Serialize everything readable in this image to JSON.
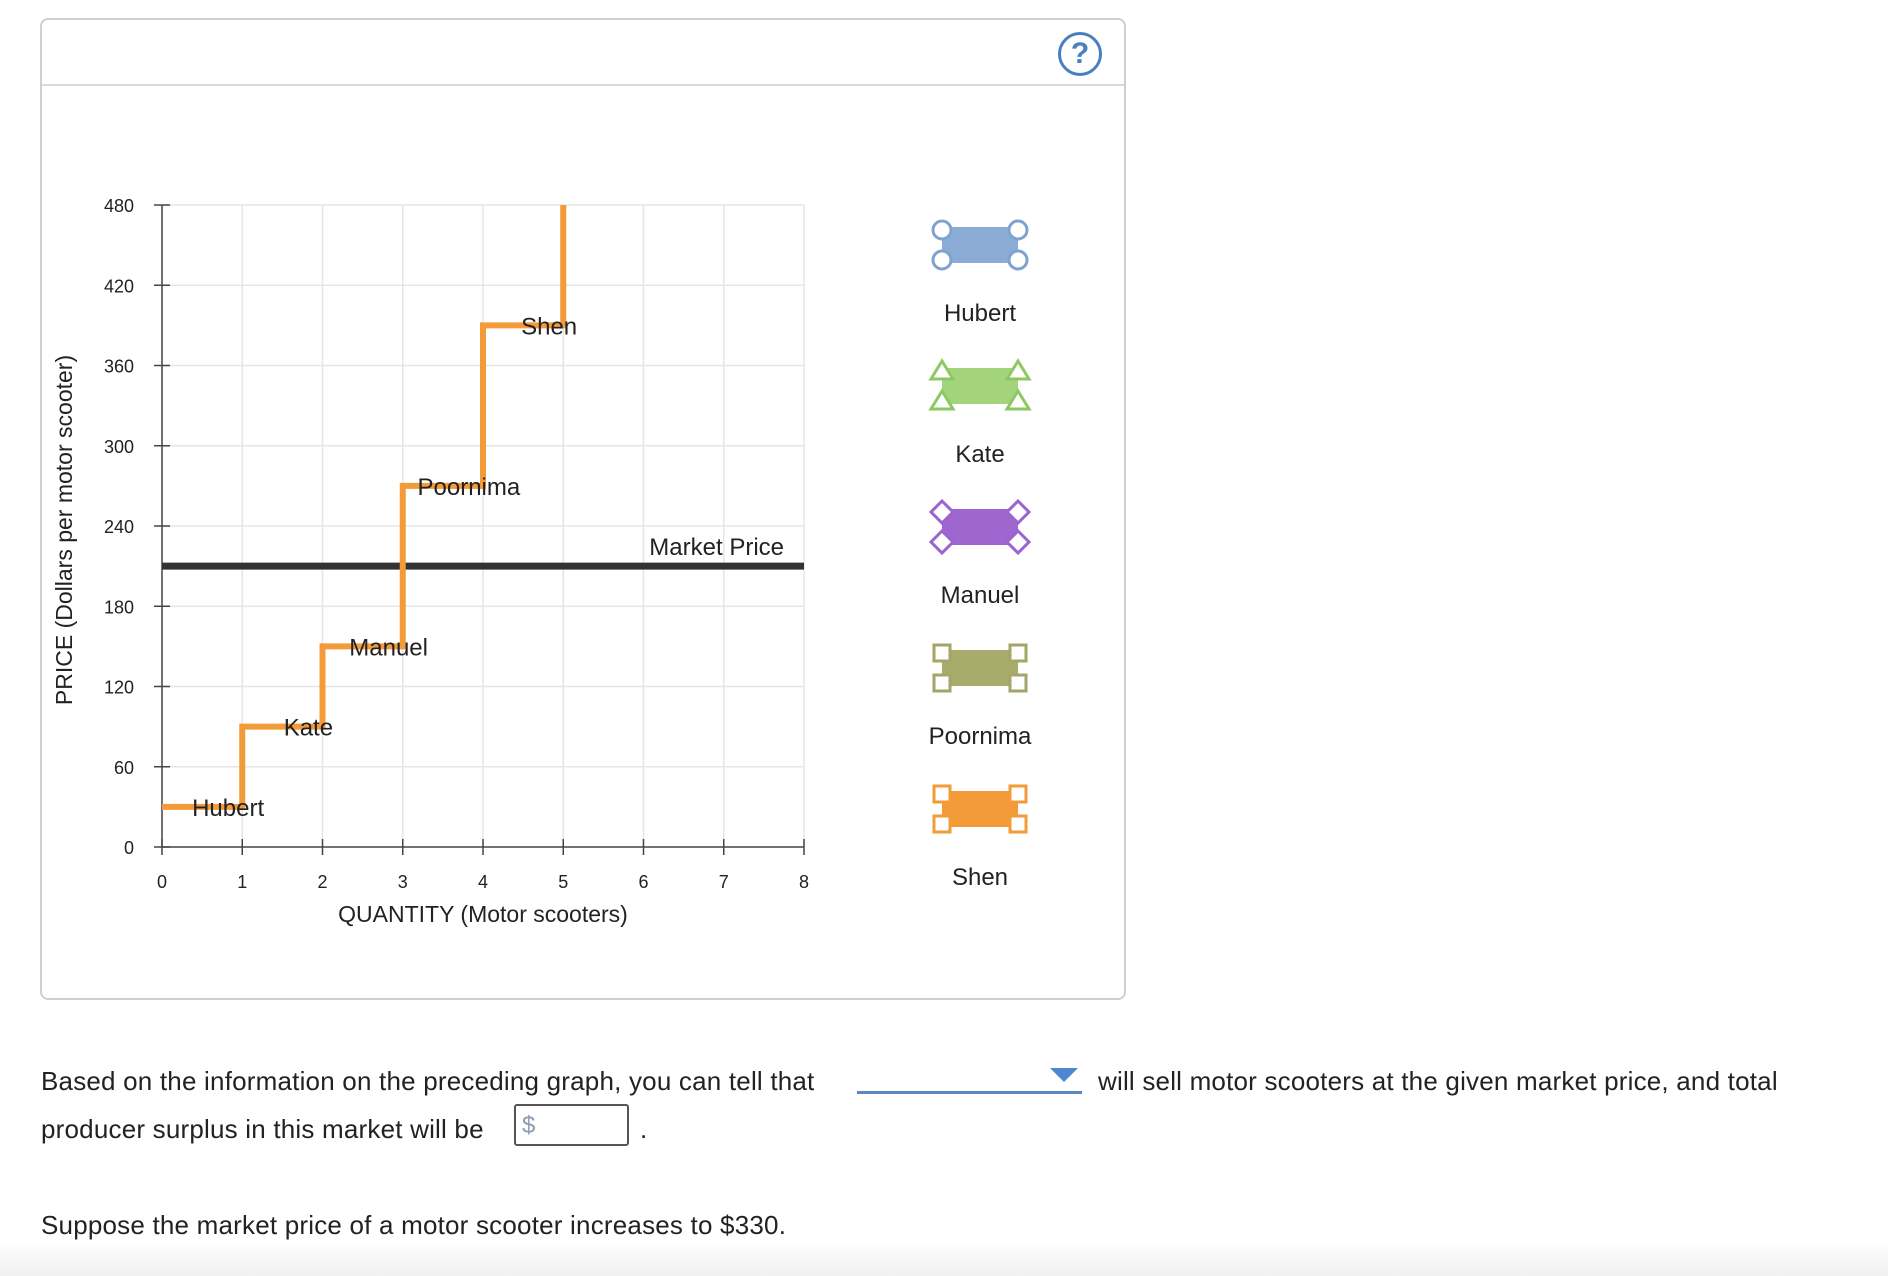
{
  "help_button": {
    "label": "?"
  },
  "chart_data": {
    "type": "line",
    "xlabel": "QUANTITY (Motor scooters)",
    "ylabel": "PRICE (Dollars per motor scooter)",
    "xlim": [
      0,
      8
    ],
    "ylim": [
      0,
      480
    ],
    "x_ticks": [
      0,
      1,
      2,
      3,
      4,
      5,
      6,
      7,
      8
    ],
    "y_ticks": [
      0,
      60,
      120,
      180,
      240,
      300,
      360,
      420,
      480
    ],
    "grid": true,
    "supply_color": "#f29b38",
    "market_price_color": "#333333",
    "supply_curve": [
      {
        "seller": "Hubert",
        "quantity_from": 0,
        "quantity_to": 1,
        "price": 30
      },
      {
        "seller": "Kate",
        "quantity_from": 1,
        "quantity_to": 2,
        "price": 90
      },
      {
        "seller": "Manuel",
        "quantity_from": 2,
        "quantity_to": 3,
        "price": 150
      },
      {
        "seller": "Poornima",
        "quantity_from": 3,
        "quantity_to": 4,
        "price": 270
      },
      {
        "seller": "Shen",
        "quantity_from": 4,
        "quantity_to": 5,
        "price": 390
      }
    ],
    "curve_end": {
      "x": 5,
      "y": 480
    },
    "market_price": {
      "label": "Market Price",
      "value": 210
    },
    "legend": [
      {
        "name": "Hubert",
        "color": "#8bacd4",
        "marker": "circle",
        "marker_color": "#7fa3cf"
      },
      {
        "name": "Kate",
        "color": "#a3d47b",
        "marker": "triangle",
        "marker_color": "#8dc862"
      },
      {
        "name": "Manuel",
        "color": "#9e67d0",
        "marker": "diamond",
        "marker_color": "#9b63d0"
      },
      {
        "name": "Poornima",
        "color": "#a8ab6a",
        "marker": "square",
        "marker_color": "#a3a569"
      },
      {
        "name": "Shen",
        "color": "#f29b38",
        "marker": "square",
        "marker_color": "#f29b38"
      }
    ],
    "legend_placement": "right"
  },
  "question": {
    "line1_prefix": "Based on the information on the preceding graph, you can tell that",
    "line1_suffix": "will sell motor scooters at the given market price, and total",
    "line2_prefix": "producer surplus in this market will be",
    "currency_symbol": "$",
    "line2_suffix": ".",
    "seller_select_value": "",
    "surplus_value": "",
    "followup": "Suppose the market price of a motor scooter increases to $330."
  }
}
